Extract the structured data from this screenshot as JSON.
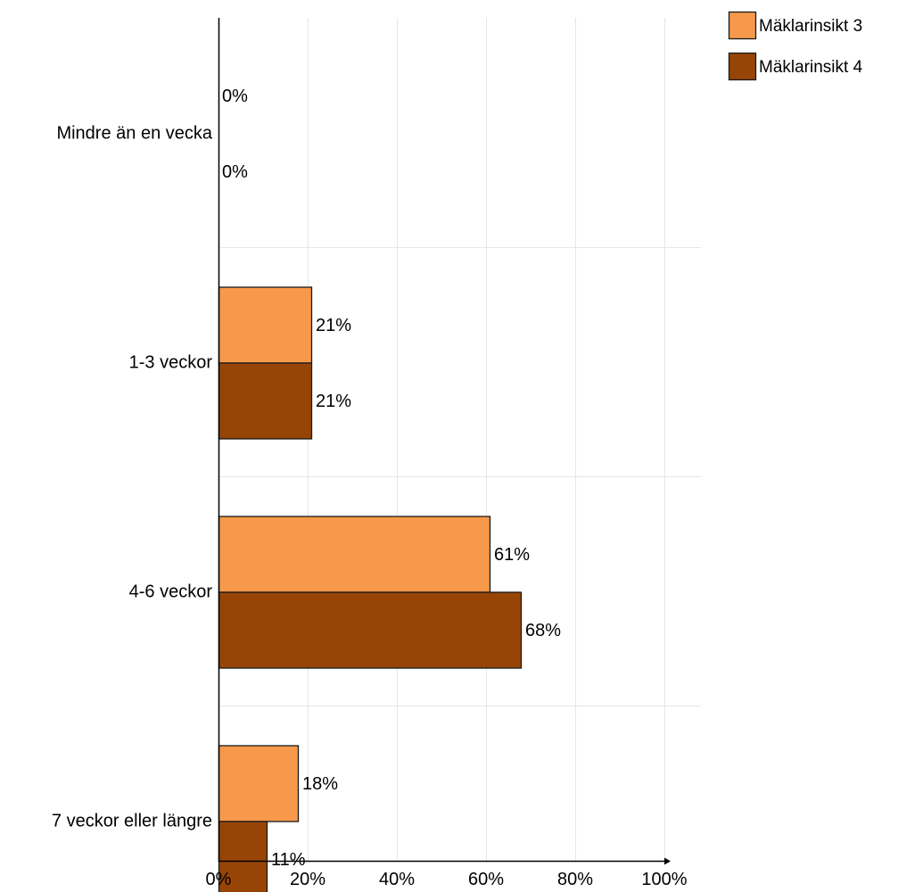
{
  "chart_data": {
    "type": "bar",
    "orientation": "horizontal",
    "categories": [
      "Mindre än en vecka",
      "1-3 veckor",
      "4-6 veckor",
      "7 veckor eller längre"
    ],
    "series": [
      {
        "name": "Mäklarinsikt 3",
        "values": [
          0,
          21,
          61,
          18
        ],
        "labels": [
          "0%",
          "21%",
          "61%",
          "18%"
        ],
        "color": "#f7994b"
      },
      {
        "name": "Mäklarinsikt 4",
        "values": [
          0,
          21,
          68,
          11
        ],
        "labels": [
          "0%",
          "21%",
          "68%",
          "11%"
        ],
        "color": "#974506"
      }
    ],
    "xlim": [
      0,
      100
    ],
    "xticks": [
      0,
      20,
      40,
      60,
      80,
      100
    ],
    "xtick_labels": [
      "0%",
      "20%",
      "40%",
      "60%",
      "80%",
      "100%"
    ],
    "grid": true,
    "legend": "top-right",
    "title": "",
    "xlabel": "",
    "ylabel": ""
  }
}
